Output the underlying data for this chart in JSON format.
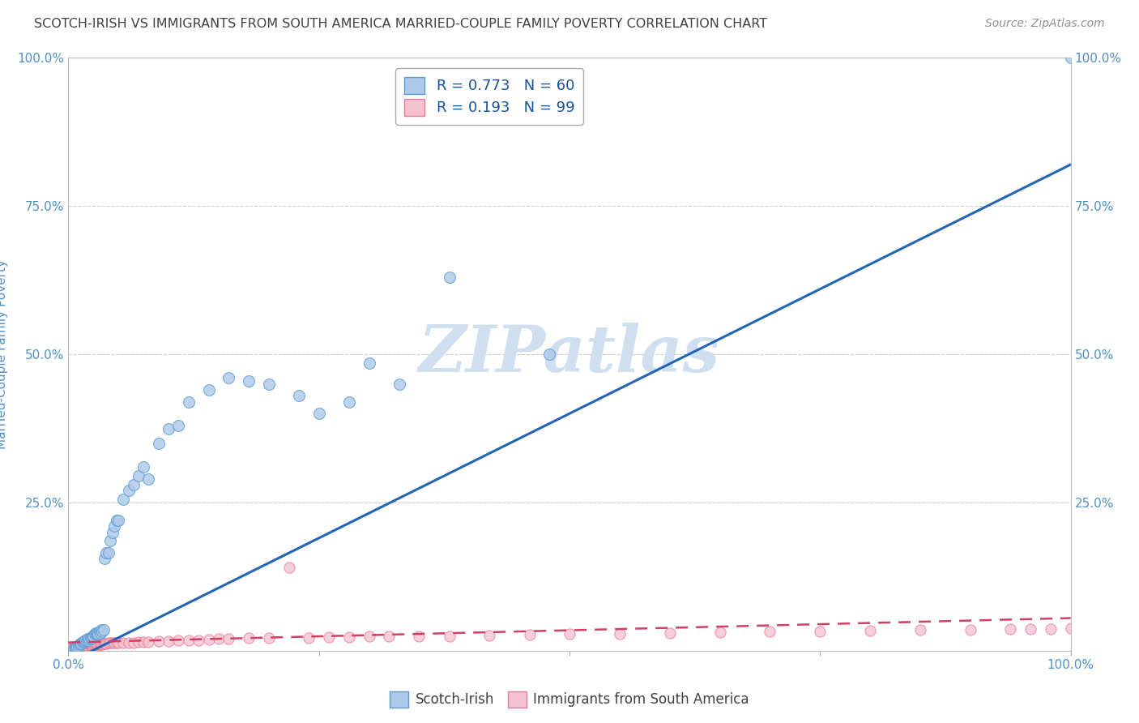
{
  "title": "SCOTCH-IRISH VS IMMIGRANTS FROM SOUTH AMERICA MARRIED-COUPLE FAMILY POVERTY CORRELATION CHART",
  "source": "Source: ZipAtlas.com",
  "ylabel": "Married-Couple Family Poverty",
  "xlim": [
    0,
    1
  ],
  "ylim": [
    0,
    1
  ],
  "xticks": [
    0.0,
    0.25,
    0.5,
    0.75,
    1.0
  ],
  "xticklabels": [
    "0.0%",
    "",
    "",
    "",
    "100.0%"
  ],
  "yticks": [
    0.0,
    0.25,
    0.5,
    0.75,
    1.0
  ],
  "yticklabels": [
    "",
    "25.0%",
    "50.0%",
    "75.0%",
    "100.0%"
  ],
  "right_yticks": [
    0.0,
    0.25,
    0.5,
    0.75,
    1.0
  ],
  "right_yticklabels": [
    "",
    "25.0%",
    "50.0%",
    "75.0%",
    "100.0%"
  ],
  "blue_R": 0.773,
  "blue_N": 60,
  "pink_R": 0.193,
  "pink_N": 99,
  "blue_color": "#adc8e8",
  "blue_edge": "#5b9bd5",
  "pink_color": "#f5c0cf",
  "pink_edge": "#e87a9a",
  "blue_line_color": "#2464b4",
  "pink_line_color": "#d04060",
  "pink_line_dash": [
    6,
    4
  ],
  "grid_color": "#c8c8c8",
  "watermark_color": "#d0dff0",
  "title_color": "#404040",
  "source_color": "#909090",
  "axis_label_color": "#5090c8",
  "tick_label_color": "#5090c8",
  "legend_label_color": "#1a5296",
  "background_color": "#ffffff",
  "blue_line_x0": 0.0,
  "blue_line_y0": -0.02,
  "blue_line_x1": 1.0,
  "blue_line_y1": 0.82,
  "pink_line_x0": 0.0,
  "pink_line_y0": 0.014,
  "pink_line_x1": 1.0,
  "pink_line_y1": 0.055,
  "blue_scatter_x": [
    0.005,
    0.007,
    0.008,
    0.009,
    0.01,
    0.011,
    0.012,
    0.013,
    0.014,
    0.015,
    0.016,
    0.017,
    0.018,
    0.019,
    0.02,
    0.021,
    0.022,
    0.023,
    0.024,
    0.025,
    0.026,
    0.027,
    0.028,
    0.029,
    0.03,
    0.031,
    0.032,
    0.033,
    0.034,
    0.035,
    0.036,
    0.038,
    0.04,
    0.042,
    0.044,
    0.046,
    0.048,
    0.05,
    0.055,
    0.06,
    0.065,
    0.07,
    0.075,
    0.08,
    0.09,
    0.1,
    0.11,
    0.12,
    0.14,
    0.16,
    0.18,
    0.2,
    0.23,
    0.25,
    0.28,
    0.3,
    0.33,
    0.38,
    0.48,
    1.0
  ],
  "blue_scatter_y": [
    0.003,
    0.005,
    0.005,
    0.007,
    0.008,
    0.01,
    0.012,
    0.012,
    0.015,
    0.015,
    0.016,
    0.017,
    0.018,
    0.02,
    0.018,
    0.02,
    0.022,
    0.022,
    0.025,
    0.025,
    0.028,
    0.03,
    0.028,
    0.03,
    0.028,
    0.032,
    0.03,
    0.035,
    0.032,
    0.035,
    0.155,
    0.165,
    0.165,
    0.185,
    0.2,
    0.21,
    0.22,
    0.22,
    0.255,
    0.27,
    0.28,
    0.295,
    0.31,
    0.29,
    0.35,
    0.375,
    0.38,
    0.42,
    0.44,
    0.46,
    0.455,
    0.45,
    0.43,
    0.4,
    0.42,
    0.485,
    0.45,
    0.63,
    0.5,
    1.0
  ],
  "pink_scatter_x": [
    0.003,
    0.004,
    0.005,
    0.005,
    0.006,
    0.006,
    0.007,
    0.007,
    0.008,
    0.008,
    0.009,
    0.009,
    0.01,
    0.01,
    0.011,
    0.011,
    0.012,
    0.012,
    0.013,
    0.013,
    0.014,
    0.014,
    0.015,
    0.015,
    0.016,
    0.016,
    0.017,
    0.018,
    0.019,
    0.02,
    0.02,
    0.021,
    0.022,
    0.022,
    0.023,
    0.023,
    0.024,
    0.024,
    0.025,
    0.025,
    0.026,
    0.026,
    0.027,
    0.028,
    0.029,
    0.03,
    0.031,
    0.032,
    0.033,
    0.034,
    0.035,
    0.036,
    0.037,
    0.038,
    0.04,
    0.042,
    0.044,
    0.046,
    0.048,
    0.05,
    0.055,
    0.06,
    0.065,
    0.07,
    0.075,
    0.08,
    0.09,
    0.1,
    0.11,
    0.12,
    0.13,
    0.14,
    0.15,
    0.16,
    0.18,
    0.2,
    0.22,
    0.24,
    0.26,
    0.28,
    0.3,
    0.32,
    0.35,
    0.38,
    0.42,
    0.46,
    0.5,
    0.55,
    0.6,
    0.65,
    0.7,
    0.75,
    0.8,
    0.85,
    0.9,
    0.94,
    0.96,
    0.98,
    1.0
  ],
  "pink_scatter_y": [
    0.004,
    0.005,
    0.004,
    0.006,
    0.005,
    0.007,
    0.005,
    0.007,
    0.005,
    0.007,
    0.005,
    0.006,
    0.005,
    0.006,
    0.005,
    0.006,
    0.005,
    0.006,
    0.005,
    0.006,
    0.005,
    0.007,
    0.005,
    0.007,
    0.005,
    0.007,
    0.006,
    0.006,
    0.006,
    0.006,
    0.007,
    0.007,
    0.007,
    0.008,
    0.007,
    0.008,
    0.007,
    0.008,
    0.007,
    0.008,
    0.008,
    0.009,
    0.009,
    0.01,
    0.01,
    0.01,
    0.01,
    0.011,
    0.011,
    0.011,
    0.012,
    0.012,
    0.012,
    0.012,
    0.013,
    0.013,
    0.013,
    0.013,
    0.013,
    0.014,
    0.014,
    0.014,
    0.014,
    0.015,
    0.015,
    0.015,
    0.016,
    0.016,
    0.017,
    0.018,
    0.018,
    0.019,
    0.02,
    0.02,
    0.021,
    0.021,
    0.14,
    0.022,
    0.023,
    0.023,
    0.024,
    0.024,
    0.025,
    0.025,
    0.026,
    0.027,
    0.028,
    0.029,
    0.03,
    0.031,
    0.032,
    0.033,
    0.034,
    0.035,
    0.035,
    0.036,
    0.036,
    0.037,
    0.038
  ]
}
